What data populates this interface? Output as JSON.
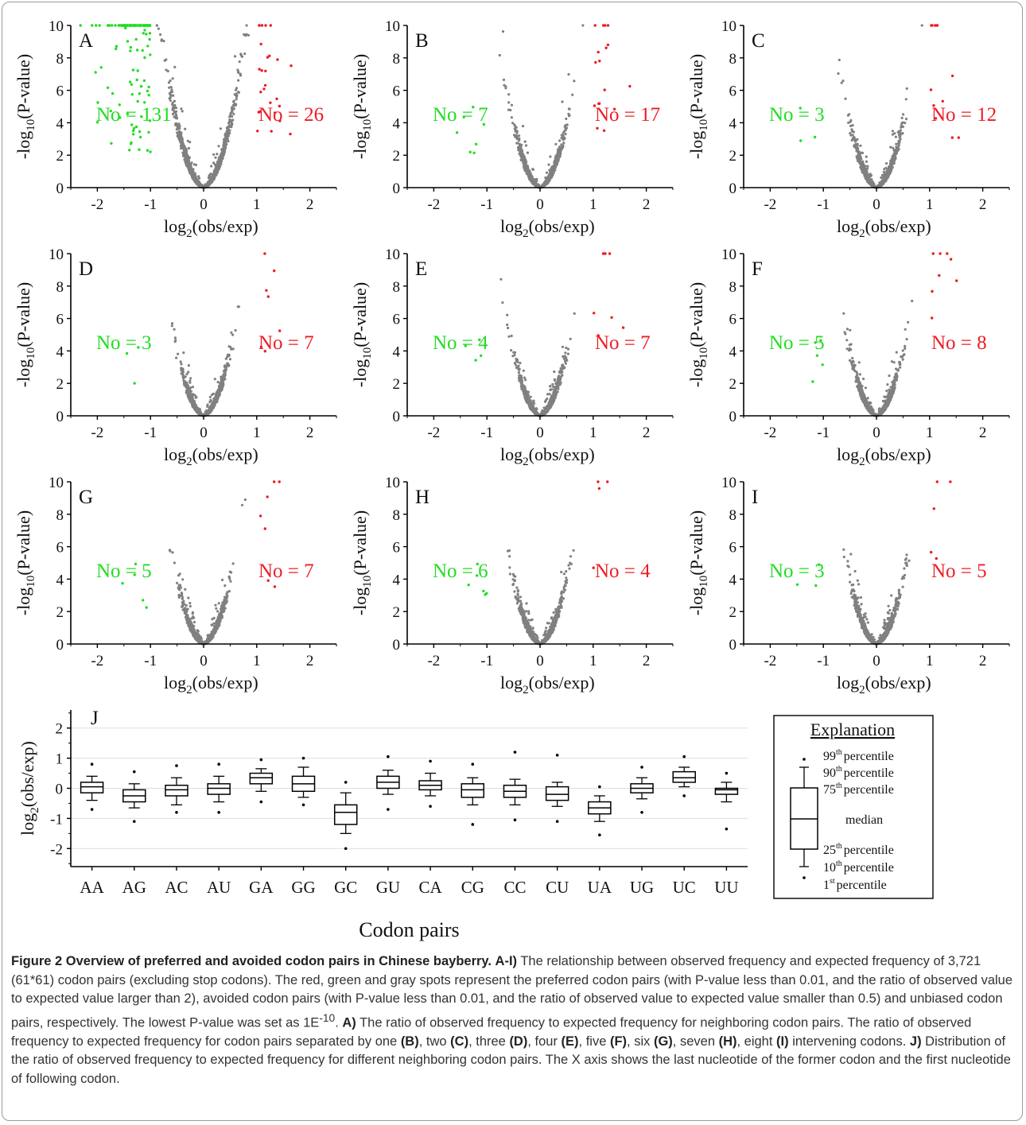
{
  "colors": {
    "preferred": "#ee1c25",
    "avoided": "#22dd22",
    "unbiased": "#808080",
    "axis": "#000000"
  },
  "chart_data": [
    {
      "type": "scatter",
      "panel": "A",
      "xlabel_base": "log",
      "xlabel_sub": "2",
      "xlabel_rest": "(obs/exp)",
      "ylabel_pre": "-log",
      "ylabel_sub": "10",
      "ylabel_rest": "(P-value)",
      "xlim": [
        -2.5,
        2.5
      ],
      "ylim": [
        0,
        10
      ],
      "xticks": [
        "-2",
        "-1",
        "0",
        "1",
        "2"
      ],
      "yticks": [
        "0",
        "2",
        "4",
        "6",
        "8",
        "10"
      ],
      "avoided_label": "No = 131",
      "preferred_label": "No = 26",
      "avoided_count": 131,
      "preferred_count": 26,
      "spread": 0.52,
      "n_gray": 1500
    },
    {
      "type": "scatter",
      "panel": "B",
      "xlabel_base": "log",
      "xlabel_sub": "2",
      "xlabel_rest": "(obs/exp)",
      "ylabel_pre": "-log",
      "ylabel_sub": "10",
      "ylabel_rest": "(P-value)",
      "xlim": [
        -2.5,
        2.5
      ],
      "ylim": [
        0,
        10
      ],
      "xticks": [
        "-2",
        "-1",
        "0",
        "1",
        "2"
      ],
      "yticks": [
        "0",
        "2",
        "4",
        "6",
        "8",
        "10"
      ],
      "avoided_label": "No = 7",
      "preferred_label": "No = 17",
      "avoided_count": 7,
      "preferred_count": 17,
      "spread": 0.4,
      "n_gray": 1200
    },
    {
      "type": "scatter",
      "panel": "C",
      "xlabel_base": "log",
      "xlabel_sub": "2",
      "xlabel_rest": "(obs/exp)",
      "ylabel_pre": "-log",
      "ylabel_sub": "10",
      "ylabel_rest": "(P-value)",
      "xlim": [
        -2.5,
        2.5
      ],
      "ylim": [
        0,
        10
      ],
      "xticks": [
        "-2",
        "-1",
        "0",
        "1",
        "2"
      ],
      "yticks": [
        "0",
        "2",
        "4",
        "6",
        "8",
        "10"
      ],
      "avoided_label": "No = 3",
      "preferred_label": "No = 12",
      "avoided_count": 3,
      "preferred_count": 12,
      "spread": 0.38,
      "n_gray": 1200
    },
    {
      "type": "scatter",
      "panel": "D",
      "xlabel_base": "log",
      "xlabel_sub": "2",
      "xlabel_rest": "(obs/exp)",
      "ylabel_pre": "-log",
      "ylabel_sub": "10",
      "ylabel_rest": "(P-value)",
      "xlim": [
        -2.5,
        2.5
      ],
      "ylim": [
        0,
        10
      ],
      "xticks": [
        "-2",
        "-1",
        "0",
        "1",
        "2"
      ],
      "yticks": [
        "0",
        "2",
        "4",
        "6",
        "8",
        "10"
      ],
      "avoided_label": "No = 3",
      "preferred_label": "No = 7",
      "avoided_count": 3,
      "preferred_count": 7,
      "spread": 0.36,
      "n_gray": 1200
    },
    {
      "type": "scatter",
      "panel": "E",
      "xlabel_base": "log",
      "xlabel_sub": "2",
      "xlabel_rest": "(obs/exp)",
      "ylabel_pre": "-log",
      "ylabel_sub": "10",
      "ylabel_rest": "(P-value)",
      "xlim": [
        -2.5,
        2.5
      ],
      "ylim": [
        0,
        10
      ],
      "xticks": [
        "-2",
        "-1",
        "0",
        "1",
        "2"
      ],
      "yticks": [
        "0",
        "2",
        "4",
        "6",
        "8",
        "10"
      ],
      "avoided_label": "No = 4",
      "preferred_label": "No = 7",
      "avoided_count": 4,
      "preferred_count": 7,
      "spread": 0.36,
      "n_gray": 1200
    },
    {
      "type": "scatter",
      "panel": "F",
      "xlabel_base": "log",
      "xlabel_sub": "2",
      "xlabel_rest": "(obs/exp)",
      "ylabel_pre": "-log",
      "ylabel_sub": "10",
      "ylabel_rest": "(P-value)",
      "xlim": [
        -2.5,
        2.5
      ],
      "ylim": [
        0,
        10
      ],
      "xticks": [
        "-2",
        "-1",
        "0",
        "1",
        "2"
      ],
      "yticks": [
        "0",
        "2",
        "4",
        "6",
        "8",
        "10"
      ],
      "avoided_label": "No = 5",
      "preferred_label": "No = 8",
      "avoided_count": 5,
      "preferred_count": 8,
      "spread": 0.36,
      "n_gray": 1200
    },
    {
      "type": "scatter",
      "panel": "G",
      "xlabel_base": "log",
      "xlabel_sub": "2",
      "xlabel_rest": "(obs/exp)",
      "ylabel_pre": "-log",
      "ylabel_sub": "10",
      "ylabel_rest": "(P-value)",
      "xlim": [
        -2.5,
        2.5
      ],
      "ylim": [
        0,
        10
      ],
      "xticks": [
        "-2",
        "-1",
        "0",
        "1",
        "2"
      ],
      "yticks": [
        "0",
        "2",
        "4",
        "6",
        "8",
        "10"
      ],
      "avoided_label": "No = 5",
      "preferred_label": "No = 7",
      "avoided_count": 5,
      "preferred_count": 7,
      "spread": 0.36,
      "n_gray": 1200
    },
    {
      "type": "scatter",
      "panel": "H",
      "xlabel_base": "log",
      "xlabel_sub": "2",
      "xlabel_rest": "(obs/exp)",
      "ylabel_pre": "-log",
      "ylabel_sub": "10",
      "ylabel_rest": "(P-value)",
      "xlim": [
        -2.5,
        2.5
      ],
      "ylim": [
        0,
        10
      ],
      "xticks": [
        "-2",
        "-1",
        "0",
        "1",
        "2"
      ],
      "yticks": [
        "0",
        "2",
        "4",
        "6",
        "8",
        "10"
      ],
      "avoided_label": "No = 6",
      "preferred_label": "No = 4",
      "avoided_count": 6,
      "preferred_count": 4,
      "spread": 0.36,
      "n_gray": 1200
    },
    {
      "type": "scatter",
      "panel": "I",
      "xlabel_base": "log",
      "xlabel_sub": "2",
      "xlabel_rest": "(obs/exp)",
      "ylabel_pre": "-log",
      "ylabel_sub": "10",
      "ylabel_rest": "(P-value)",
      "xlim": [
        -2.5,
        2.5
      ],
      "ylim": [
        0,
        10
      ],
      "xticks": [
        "-2",
        "-1",
        "0",
        "1",
        "2"
      ],
      "yticks": [
        "0",
        "2",
        "4",
        "6",
        "8",
        "10"
      ],
      "avoided_label": "No = 3",
      "preferred_label": "No = 5",
      "avoided_count": 3,
      "preferred_count": 5,
      "spread": 0.36,
      "n_gray": 1200
    },
    {
      "type": "box",
      "panel": "J",
      "xlabel": "Codon pairs",
      "ylabel_base": "log",
      "ylabel_sub": "2",
      "ylabel_rest": "(obs/exp)",
      "ylim": [
        -2.6,
        2.6
      ],
      "yticks": [
        "-2",
        "-1",
        "0",
        "1",
        "2"
      ],
      "categories": [
        "AA",
        "AG",
        "AC",
        "AU",
        "GA",
        "GG",
        "GC",
        "GU",
        "CA",
        "CG",
        "CC",
        "CU",
        "UA",
        "UG",
        "UC",
        "UU"
      ],
      "boxes": [
        {
          "p1": -0.7,
          "p10": -0.4,
          "q1": -0.15,
          "median": 0.05,
          "q3": 0.2,
          "p90": 0.4,
          "p99": 0.8
        },
        {
          "p1": -1.1,
          "p10": -0.65,
          "q1": -0.45,
          "median": -0.25,
          "q3": -0.05,
          "p90": 0.15,
          "p99": 0.55
        },
        {
          "p1": -0.8,
          "p10": -0.55,
          "q1": -0.25,
          "median": -0.05,
          "q3": 0.1,
          "p90": 0.35,
          "p99": 0.75
        },
        {
          "p1": -0.8,
          "p10": -0.45,
          "q1": -0.2,
          "median": 0.0,
          "q3": 0.15,
          "p90": 0.4,
          "p99": 0.8
        },
        {
          "p1": -0.45,
          "p10": -0.1,
          "q1": 0.15,
          "median": 0.35,
          "q3": 0.5,
          "p90": 0.65,
          "p99": 0.95
        },
        {
          "p1": -0.55,
          "p10": -0.3,
          "q1": -0.1,
          "median": 0.15,
          "q3": 0.4,
          "p90": 0.7,
          "p99": 1.0
        },
        {
          "p1": -2.0,
          "p10": -1.5,
          "q1": -1.2,
          "median": -0.8,
          "q3": -0.55,
          "p90": -0.15,
          "p99": 0.2
        },
        {
          "p1": -0.7,
          "p10": -0.2,
          "q1": 0.0,
          "median": 0.2,
          "q3": 0.4,
          "p90": 0.6,
          "p99": 1.05
        },
        {
          "p1": -0.6,
          "p10": -0.25,
          "q1": -0.05,
          "median": 0.1,
          "q3": 0.25,
          "p90": 0.5,
          "p99": 0.9
        },
        {
          "p1": -1.2,
          "p10": -0.55,
          "q1": -0.3,
          "median": -0.05,
          "q3": 0.15,
          "p90": 0.35,
          "p99": 0.8
        },
        {
          "p1": -1.05,
          "p10": -0.55,
          "q1": -0.3,
          "median": -0.1,
          "q3": 0.1,
          "p90": 0.3,
          "p99": 1.2
        },
        {
          "p1": -1.1,
          "p10": -0.6,
          "q1": -0.4,
          "median": -0.2,
          "q3": 0.05,
          "p90": 0.2,
          "p99": 1.1
        },
        {
          "p1": -1.55,
          "p10": -1.1,
          "q1": -0.85,
          "median": -0.65,
          "q3": -0.45,
          "p90": -0.25,
          "p99": 0.05
        },
        {
          "p1": -0.8,
          "p10": -0.35,
          "q1": -0.15,
          "median": 0.0,
          "q3": 0.15,
          "p90": 0.35,
          "p99": 0.7
        },
        {
          "p1": -0.25,
          "p10": 0.05,
          "q1": 0.2,
          "median": 0.35,
          "q3": 0.55,
          "p90": 0.7,
          "p99": 1.05
        },
        {
          "p1": -1.35,
          "p10": -0.45,
          "q1": -0.2,
          "median": -0.05,
          "q3": 0.0,
          "p90": 0.2,
          "p99": 0.5
        }
      ]
    }
  ],
  "legend": {
    "title": "Explanation",
    "items": [
      {
        "num": "99",
        "sup": "th",
        "text": "percentile"
      },
      {
        "num": "90",
        "sup": "th",
        "text": "percentile"
      },
      {
        "num": "75",
        "sup": "th",
        "text": "percentile"
      },
      {
        "num": "",
        "sup": "",
        "text": "median"
      },
      {
        "num": "25",
        "sup": "th",
        "text": "percentile"
      },
      {
        "num": "10",
        "sup": "th",
        "text": "percentile"
      },
      {
        "num": "1",
        "sup": "st",
        "text": "percentile"
      }
    ]
  },
  "caption": {
    "title": "Figure 2 Overview of preferred and avoided codon pairs in Chinese bayberry.",
    "p1_label": "A-I)",
    "p1_text": " The relationship between observed frequency and expected frequency of 3,721 (61*61) codon pairs (excluding stop codons). The red, green and gray spots represent the preferred codon pairs (with P-value less than 0.01, and the ratio of observed value to expected value larger than 2), avoided codon pairs (with P-value less than 0.01, and the ratio of observed value to expected value smaller than 0.5) and unbiased codon pairs, respectively. The lowest P-value was set as 1E",
    "p1_sup": "-10",
    "p1_end": ".",
    "a_label": "A)",
    "a_text": " The ratio of observed frequency to expected frequency for neighboring codon pairs. The ratio of observed frequency to expected frequency for codon pairs separated by one ",
    "b_label": "(B)",
    "t2": ", two ",
    "c_label": "(C)",
    "t3": ", three ",
    "d_label": "(D)",
    "t4": ", four ",
    "e_label": "(E)",
    "t5": ", five ",
    "f_label": "(F)",
    "t6": ", six ",
    "g_label": "(G)",
    "t7": ", seven ",
    "h_label": "(H)",
    "t8": ", eight ",
    "i_label": "(I)",
    "t9": " intervening codons. ",
    "j_label": "J)",
    "j_text": " Distribution of the ratio of observed frequency to expected frequency for different neighboring codon pairs. The X axis shows the last nucleotide of the former codon and the first nucleotide of following codon."
  }
}
